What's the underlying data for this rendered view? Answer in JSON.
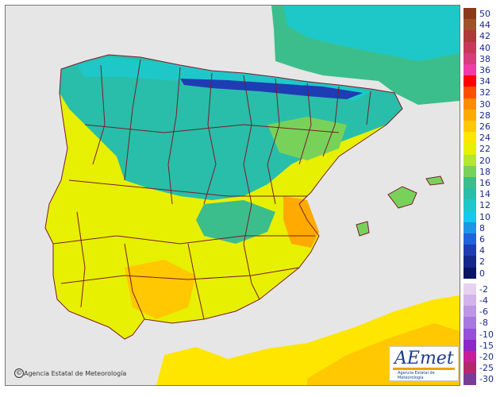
{
  "credit": "Agencia Estatal de Meteorología",
  "logo": {
    "brand": "AEmet",
    "subtitle": "Agencia Estatal de Meteorología"
  },
  "colors": {
    "sea": "#e6e6e6",
    "border": "#7a1c2a"
  },
  "legend": [
    {
      "label": "50",
      "color": "#8b3a1a"
    },
    {
      "label": "44",
      "color": "#a0522d"
    },
    {
      "label": "42",
      "color": "#b03a3a"
    },
    {
      "label": "40",
      "color": "#c8385a"
    },
    {
      "label": "38",
      "color": "#d83c7c"
    },
    {
      "label": "36",
      "color": "#f03ca8"
    },
    {
      "label": "34",
      "color": "#ff0000"
    },
    {
      "label": "32",
      "color": "#ff5000"
    },
    {
      "label": "30",
      "color": "#ff8c00"
    },
    {
      "label": "28",
      "color": "#ffaa00"
    },
    {
      "label": "26",
      "color": "#ffc800"
    },
    {
      "label": "24",
      "color": "#ffe600"
    },
    {
      "label": "22",
      "color": "#e6f000"
    },
    {
      "label": "20",
      "color": "#b4e632"
    },
    {
      "label": "18",
      "color": "#78d25a"
    },
    {
      "label": "16",
      "color": "#3cbe8c"
    },
    {
      "label": "14",
      "color": "#28beaa"
    },
    {
      "label": "12",
      "color": "#1ec8c8"
    },
    {
      "label": "10",
      "color": "#14c8f0"
    },
    {
      "label": "8",
      "color": "#1e96e6"
    },
    {
      "label": "6",
      "color": "#1e64dc"
    },
    {
      "label": "4",
      "color": "#1e3cb4"
    },
    {
      "label": "2",
      "color": "#14288c"
    },
    {
      "label": "0",
      "color": "#0a1464"
    },
    {
      "label": "-2",
      "color": "#e6d2f0"
    },
    {
      "label": "-4",
      "color": "#d2b4eb"
    },
    {
      "label": "-6",
      "color": "#be96e6"
    },
    {
      "label": "-8",
      "color": "#a878e1"
    },
    {
      "label": "-10",
      "color": "#9650dc"
    },
    {
      "label": "-15",
      "color": "#8c28c8"
    },
    {
      "label": "-20",
      "color": "#c81e96"
    },
    {
      "label": "-25",
      "color": "#b4286e"
    },
    {
      "label": "-30",
      "color": "#783c96"
    }
  ]
}
